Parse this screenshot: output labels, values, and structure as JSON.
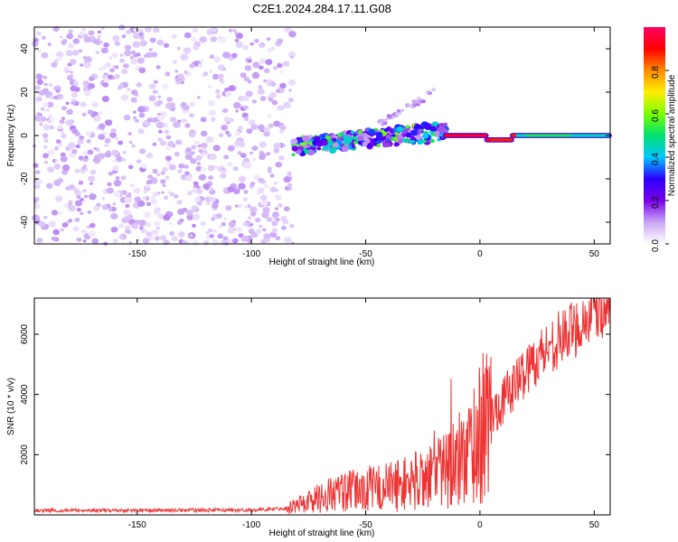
{
  "title": "C2E1.2024.284.17.11.G08",
  "chart_data": [
    {
      "type": "heatmap",
      "name": "spectrogram",
      "xlabel": "Height of straight line (km)",
      "ylabel": "Frequency (Hz)",
      "xlim": [
        -195,
        57
      ],
      "ylim": [
        -50,
        50
      ],
      "xticks": [
        -150,
        -100,
        -50,
        0,
        50
      ],
      "yticks": [
        -40,
        -20,
        0,
        20,
        40
      ],
      "colorbar": {
        "label": "Normalized spectral amplitude",
        "range": [
          0,
          1
        ],
        "ticks": [
          0.0,
          0.2,
          0.4,
          0.6,
          0.8
        ],
        "tick_labels": [
          "0.0",
          "0.2",
          "0.4",
          "0.6",
          "0.8"
        ],
        "colormap": [
          "#ffffff",
          "#c9a6f5",
          "#7a00e8",
          "#2b00ff",
          "#00c8ff",
          "#00e070",
          "#7cff00",
          "#ffee00",
          "#ff8c00",
          "#ff0000",
          "#ff0066"
        ]
      },
      "regions": [
        {
          "description": "scattered noise",
          "x_range": [
            -195,
            -82
          ],
          "freq_range": [
            -50,
            50
          ],
          "amplitude": [
            0.02,
            0.12
          ]
        },
        {
          "description": "tracked tone noisy",
          "x_range": [
            -82,
            -15
          ],
          "center_freq": [
            -5,
            2
          ],
          "amplitude": [
            0.1,
            0.6
          ]
        },
        {
          "description": "faint side branch",
          "x_range": [
            -45,
            -20
          ],
          "center_freq": [
            5,
            20
          ],
          "amplitude": [
            0.05,
            0.15
          ]
        },
        {
          "description": "clean tone",
          "x_range": [
            -15,
            57
          ],
          "center_freq": [
            -2,
            1
          ],
          "amplitude": [
            0.45,
            0.95
          ]
        }
      ]
    },
    {
      "type": "line",
      "name": "snr",
      "xlabel": "Height of straight line (km)",
      "ylabel": "SNR (10 * v/v)",
      "xlim": [
        -195,
        57
      ],
      "ylim": [
        0,
        7200
      ],
      "xticks": [
        -150,
        -100,
        -50,
        0,
        50
      ],
      "yticks": [
        2000,
        4000,
        6000
      ],
      "color": "#ee3333",
      "trend": {
        "x": [
          -195,
          -150,
          -100,
          -85,
          -75,
          -65,
          -55,
          -45,
          -35,
          -25,
          -20,
          -15,
          -10,
          -5,
          0,
          5,
          10,
          20,
          30,
          40,
          50,
          57
        ],
        "y": [
          150,
          150,
          160,
          220,
          450,
          700,
          800,
          900,
          1000,
          1200,
          1500,
          1600,
          1700,
          2200,
          2700,
          3300,
          3800,
          4800,
          5600,
          6100,
          6700,
          6900
        ]
      }
    }
  ]
}
